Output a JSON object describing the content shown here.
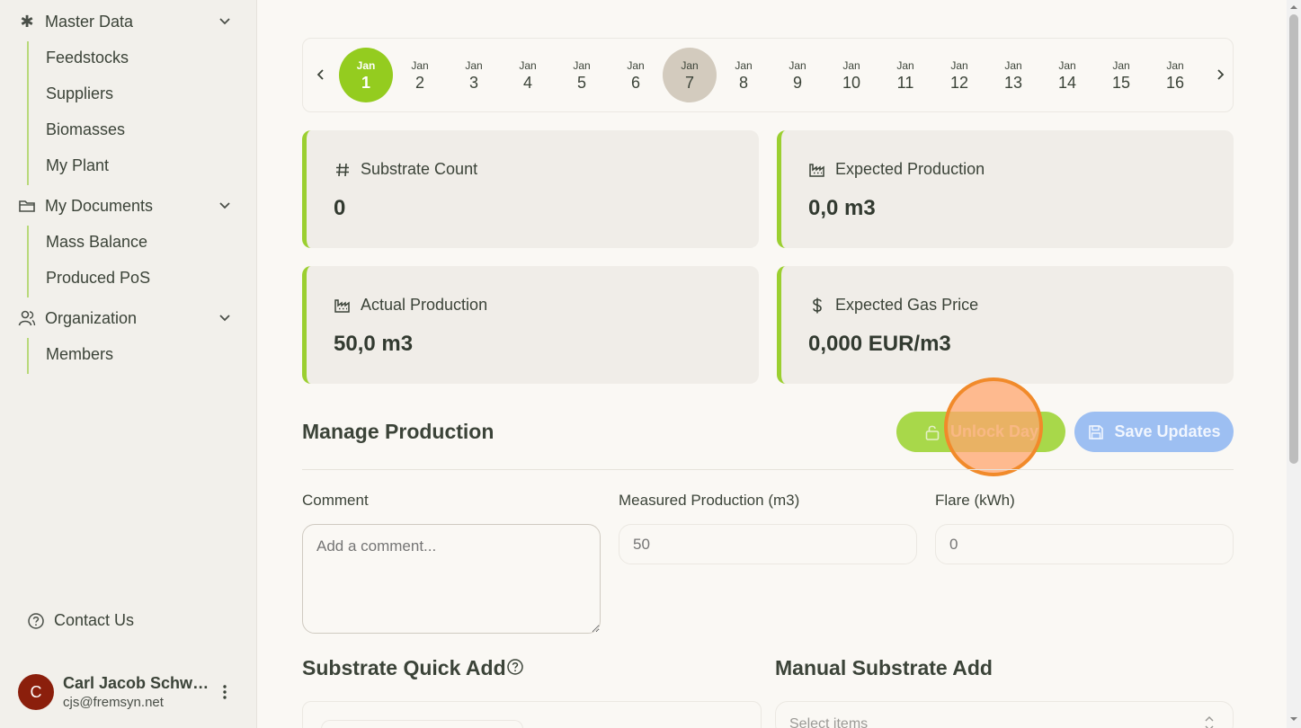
{
  "sidebar": {
    "groups": [
      {
        "label": "Master Data",
        "icon": "asterisk-icon",
        "items": [
          "Feedstocks",
          "Suppliers",
          "Biomasses",
          "My Plant"
        ]
      },
      {
        "label": "My Documents",
        "icon": "folder-icon",
        "items": [
          "Mass Balance",
          "Produced PoS"
        ]
      },
      {
        "label": "Organization",
        "icon": "users-icon",
        "items": [
          "Members"
        ]
      }
    ],
    "contact_label": "Contact Us",
    "user": {
      "initial": "C",
      "name": "Carl Jacob Schwar...",
      "email": "cjs@fremsyn.net"
    }
  },
  "datestrip": {
    "days": [
      {
        "month": "Jan",
        "day": "1",
        "state": "active"
      },
      {
        "month": "Jan",
        "day": "2",
        "state": ""
      },
      {
        "month": "Jan",
        "day": "3",
        "state": ""
      },
      {
        "month": "Jan",
        "day": "4",
        "state": ""
      },
      {
        "month": "Jan",
        "day": "5",
        "state": ""
      },
      {
        "month": "Jan",
        "day": "6",
        "state": ""
      },
      {
        "month": "Jan",
        "day": "7",
        "state": "locked"
      },
      {
        "month": "Jan",
        "day": "8",
        "state": ""
      },
      {
        "month": "Jan",
        "day": "9",
        "state": ""
      },
      {
        "month": "Jan",
        "day": "10",
        "state": ""
      },
      {
        "month": "Jan",
        "day": "11",
        "state": ""
      },
      {
        "month": "Jan",
        "day": "12",
        "state": ""
      },
      {
        "month": "Jan",
        "day": "13",
        "state": ""
      },
      {
        "month": "Jan",
        "day": "14",
        "state": ""
      },
      {
        "month": "Jan",
        "day": "15",
        "state": ""
      },
      {
        "month": "Jan",
        "day": "16",
        "state": ""
      }
    ]
  },
  "stats": {
    "substrate_count": {
      "label": "Substrate Count",
      "value": "0",
      "icon": "hash-icon"
    },
    "expected_production": {
      "label": "Expected Production",
      "value": "0,0 m3",
      "icon": "factory-icon"
    },
    "actual_production": {
      "label": "Actual Production",
      "value": "50,0 m3",
      "icon": "factory-icon"
    },
    "expected_gas_price": {
      "label": "Expected Gas Price",
      "value": "0,000 EUR/m3",
      "icon": "dollar-icon"
    }
  },
  "manage": {
    "title": "Manage Production",
    "unlock_label": "Unlock Day",
    "save_label": "Save Updates",
    "comment_label": "Comment",
    "comment_placeholder": "Add a comment...",
    "measured_label": "Measured Production (m3)",
    "measured_value": "50",
    "flare_label": "Flare (kWh)",
    "flare_value": "0"
  },
  "substrate": {
    "quick_add_title": "Substrate Quick Add",
    "manual_add_title": "Manual Substrate Add",
    "select_placeholder": "Select items"
  },
  "colors": {
    "accent": "#94cc1f",
    "save": "#9dbff2",
    "locked_day": "#d3cbbe"
  }
}
